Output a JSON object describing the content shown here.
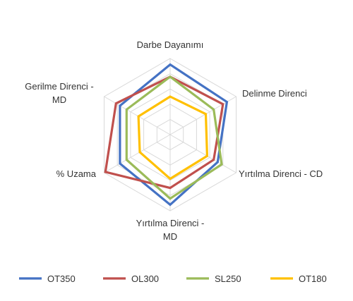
{
  "chart_data": {
    "type": "radar",
    "axes": [
      [
        "Darbe Dayanımı"
      ],
      [
        "Delinme Direnci"
      ],
      [
        "Yırtılma Direnci - CD"
      ],
      [
        "Yırtılma Direnci -",
        "MD"
      ],
      [
        "% Uzama"
      ],
      [
        "Gerilme Direnci -",
        "MD"
      ]
    ],
    "range": [
      0,
      5
    ],
    "grid_rings": 5,
    "legend_position": "bottom",
    "series": [
      {
        "name": "OT350",
        "color": "#4472C4",
        "values": [
          4.6,
          4.3,
          3.6,
          4.6,
          3.8,
          3.8
        ]
      },
      {
        "name": "OL300",
        "color": "#C0504D",
        "values": [
          3.8,
          4.0,
          3.3,
          3.5,
          4.9,
          4.1
        ]
      },
      {
        "name": "SL250",
        "color": "#9BBB59",
        "values": [
          3.8,
          3.3,
          3.9,
          4.2,
          3.3,
          3.3
        ]
      },
      {
        "name": "OT180",
        "color": "#FFC000",
        "values": [
          2.5,
          2.7,
          2.8,
          2.9,
          2.3,
          2.4
        ]
      }
    ]
  }
}
